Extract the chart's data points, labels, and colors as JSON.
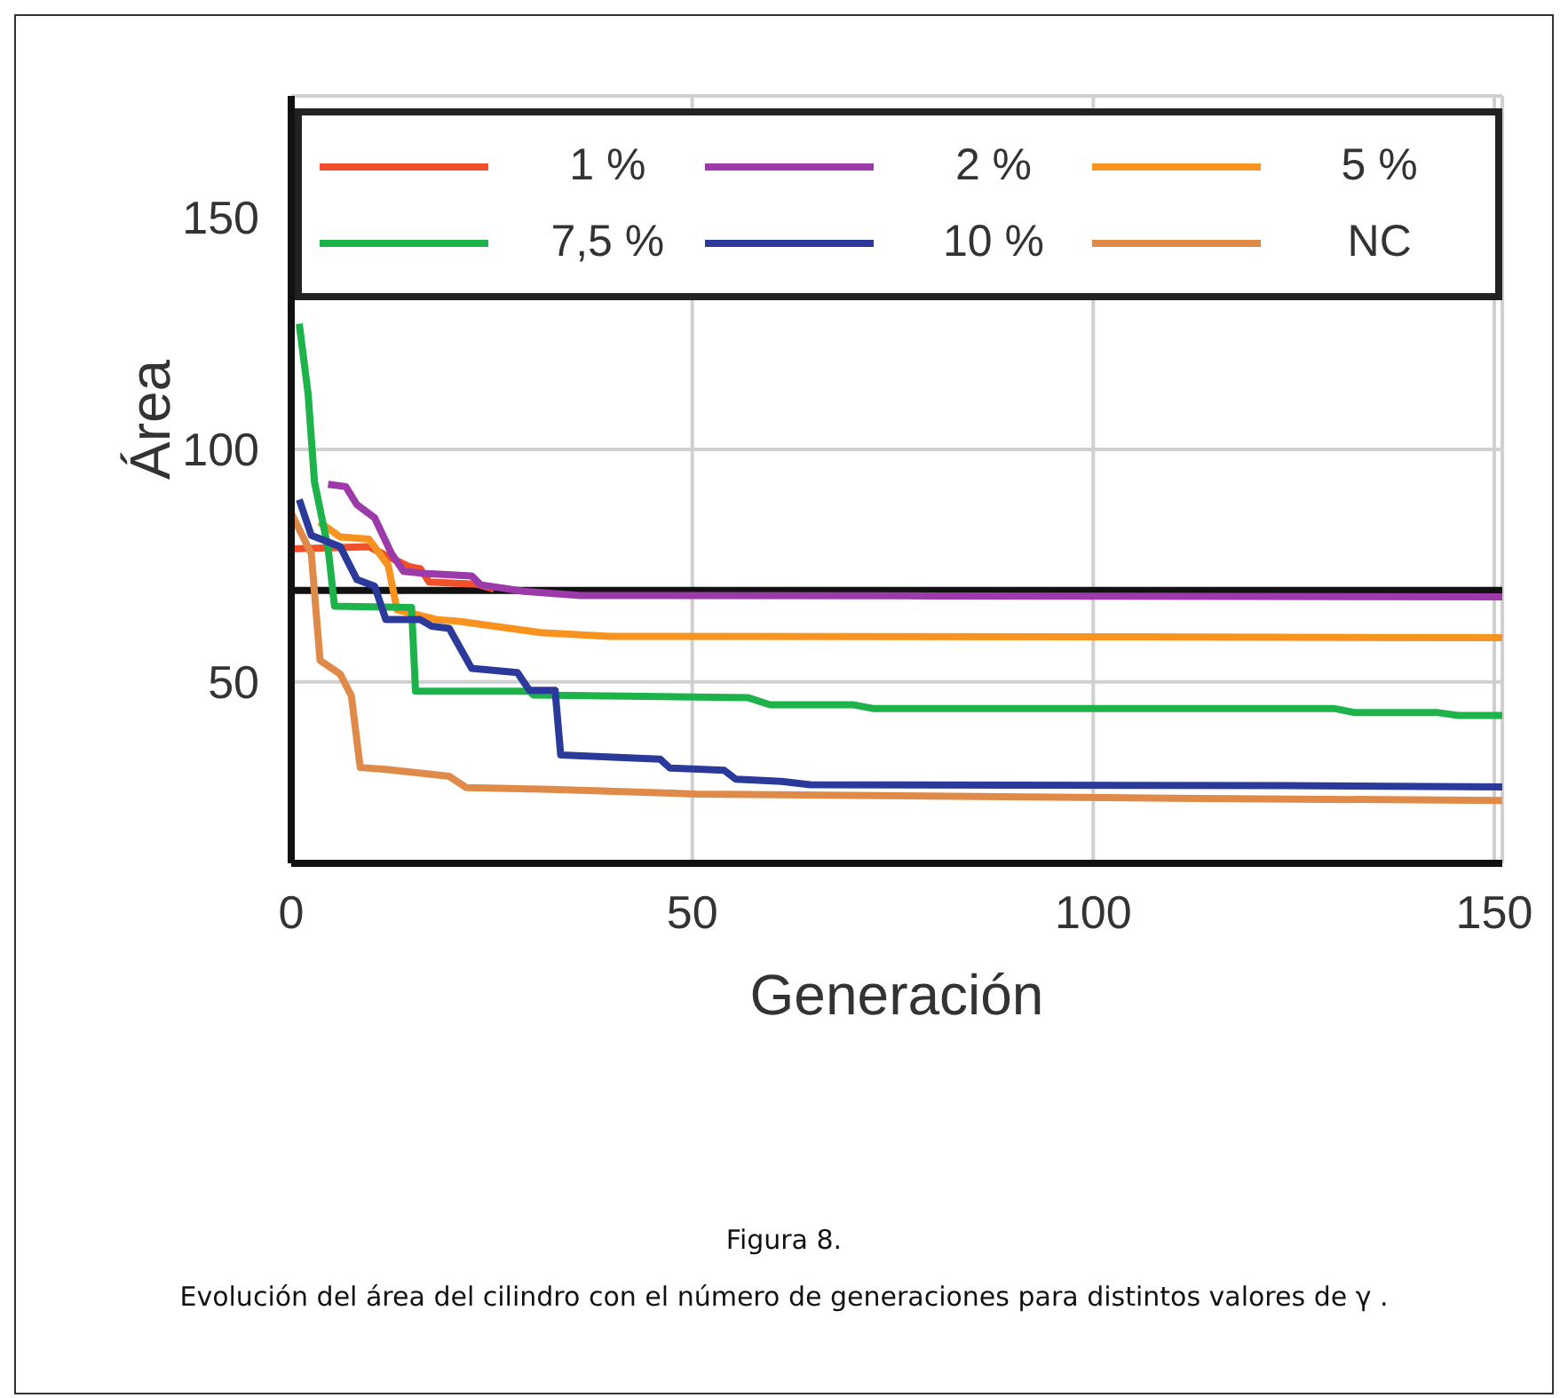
{
  "chart_data": {
    "type": "line",
    "xlabel": "Generación",
    "ylabel": "Área",
    "xlim": [
      0,
      151
    ],
    "xticks": [
      0,
      50,
      100,
      150
    ],
    "ylim": [
      11,
      176
    ],
    "yticks": [
      50,
      100,
      150
    ],
    "grid": true,
    "legend": "top",
    "marker": "none",
    "line_style": "solid",
    "ref_lines": [
      {
        "axis": "y",
        "value": 69.7,
        "color": "#111111"
      }
    ],
    "annotations": [
      "Figura 8.",
      "Evolución del área del cilindro con el número de generaciones para distintos valores de γ ."
    ],
    "series": [
      {
        "name": "1 %",
        "color": "#f0502a",
        "x": [
          0,
          9.7,
          12,
          14.7,
          16.1,
          17.2,
          23.2,
          25.3
        ],
        "values": [
          78.6,
          79.1,
          77,
          74.8,
          74.3,
          71.5,
          71,
          70
        ]
      },
      {
        "name": "2 %",
        "color": "#9b3aa8",
        "x": [
          4.6,
          6.8,
          8.2,
          10.4,
          12.5,
          14,
          16.8,
          22.5,
          23.6,
          29,
          36.1,
          80,
          151
        ],
        "values": [
          92.5,
          92,
          88.1,
          85.3,
          77.6,
          73.8,
          73.3,
          72.8,
          70.9,
          69.5,
          68.6,
          68.5,
          68.3
        ]
      },
      {
        "name": "5 %",
        "color": "#f7931e",
        "x": [
          3.5,
          6.1,
          9.7,
          12.1,
          13.2,
          18.2,
          21.1,
          25.3,
          31.1,
          39.7,
          100,
          151
        ],
        "values": [
          84.4,
          81.2,
          80.7,
          75,
          65.5,
          63.4,
          63,
          62,
          60.6,
          59.8,
          59.7,
          59.5
        ]
      },
      {
        "name": "7,5 %",
        "color": "#1db34a",
        "x": [
          1,
          2.1,
          2.9,
          4.6,
          5.4,
          15,
          15.5,
          29.7,
          30.2,
          57,
          59.7,
          70,
          72.5,
          130,
          132.6,
          143,
          145.5,
          151
        ],
        "values": [
          127,
          112,
          93,
          78.7,
          66.3,
          66,
          48,
          48,
          47.2,
          46.6,
          45.1,
          45.1,
          44.3,
          44.3,
          43.4,
          43.4,
          42.8,
          42.8
        ]
      },
      {
        "name": "10 %",
        "color": "#2b3a9a",
        "x": [
          1,
          2.5,
          6.1,
          8.2,
          10.4,
          11.8,
          16.1,
          17.5,
          19.7,
          22.5,
          28.2,
          29.7,
          32.9,
          33.6,
          46,
          47.2,
          54,
          55.4,
          61.1,
          64.7,
          124,
          151
        ],
        "values": [
          89.2,
          81.5,
          79.1,
          72,
          70.6,
          63.4,
          63.4,
          62,
          61.5,
          52.9,
          52,
          48.2,
          48.2,
          34.3,
          33.4,
          31.5,
          31,
          29.1,
          28.6,
          27.9,
          27.7,
          27.4
        ]
      },
      {
        "name": "NC",
        "color": "#e08a4a",
        "x": [
          0,
          2.5,
          3.6,
          6.1,
          7.5,
          8.6,
          11.8,
          19.7,
          21.8,
          32.5,
          50.4,
          110,
          151
        ],
        "values": [
          86.3,
          77.6,
          54.6,
          51.7,
          47,
          31.6,
          31.2,
          29.7,
          27.3,
          26.9,
          25.9,
          25,
          24.5
        ]
      }
    ]
  }
}
